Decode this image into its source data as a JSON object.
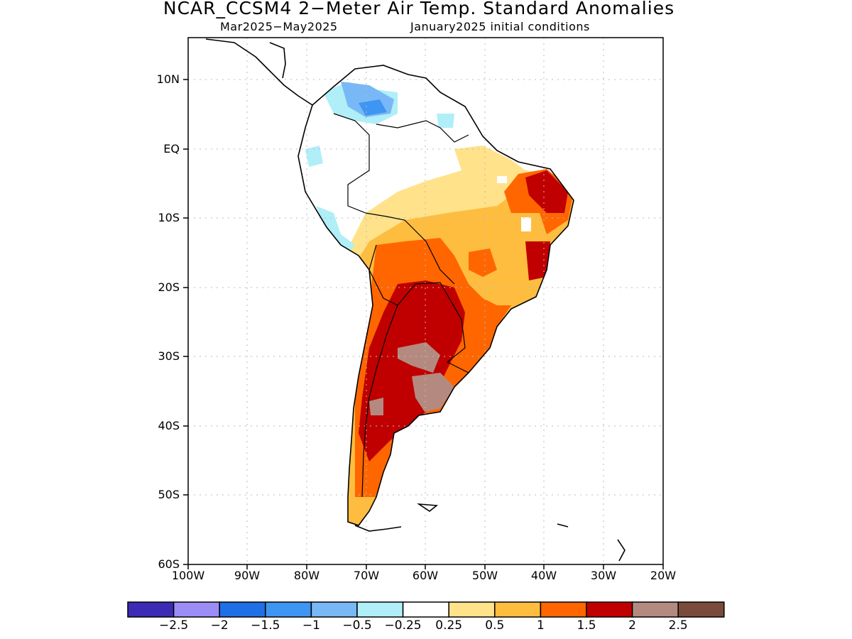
{
  "title": "NCAR_CCSM4 2−Meter Air Temp. Standard Anomalies",
  "subtitle_left": "Mar2025−May2025",
  "subtitle_right": "January2025 initial conditions",
  "map": {
    "type": "map-anomaly",
    "lat_labels": [
      "10N",
      "EQ",
      "10S",
      "20S",
      "30S",
      "40S",
      "50S",
      "60S"
    ],
    "lat_values": [
      10,
      0,
      -10,
      -20,
      -30,
      -40,
      -50,
      -60
    ],
    "lon_labels": [
      "100W",
      "90W",
      "80W",
      "70W",
      "60W",
      "50W",
      "40W",
      "30W",
      "20W"
    ],
    "lon_values": [
      -100,
      -90,
      -80,
      -70,
      -60,
      -50,
      -40,
      -30,
      -20
    ],
    "lat_range": [
      -60,
      16
    ],
    "lon_range": [
      -100,
      -20
    ],
    "grid": true
  },
  "colorbar": {
    "colors": [
      "#3c2bb5",
      "#9c8cf5",
      "#1f6fe6",
      "#3f95f2",
      "#79b8f6",
      "#b0eef8",
      "#ffffff",
      "#ffe28a",
      "#ffbd3f",
      "#ff6600",
      "#c00000",
      "#b48a80",
      "#7a4b3c"
    ],
    "labels": [
      "−2.5",
      "−2",
      "−1.5",
      "−1",
      "−0.5",
      "−0.25",
      "0.25",
      "0.5",
      "1",
      "1.5",
      "2",
      "2.5"
    ]
  }
}
